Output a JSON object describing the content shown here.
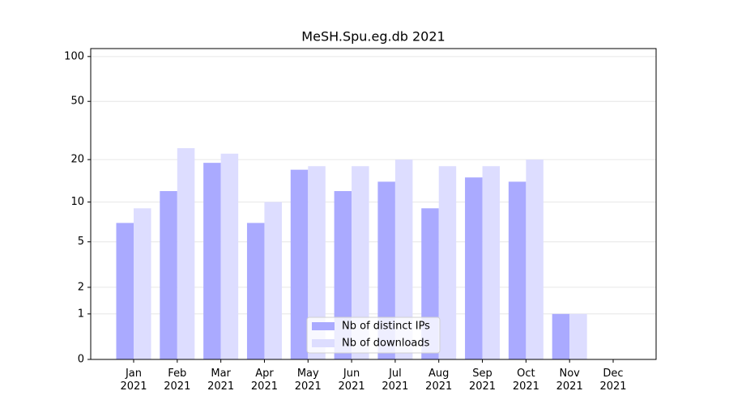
{
  "chart_data": {
    "type": "bar",
    "title": "MeSH.Spu.eg.db 2021",
    "categories": [
      "Jan 2021",
      "Feb 2021",
      "Mar 2021",
      "Apr 2021",
      "May 2021",
      "Jun 2021",
      "Jul 2021",
      "Aug 2021",
      "Sep 2021",
      "Oct 2021",
      "Nov 2021",
      "Dec 2021"
    ],
    "series": [
      {
        "name": "Nb of distinct IPs",
        "color": "#aaaaff",
        "values": [
          7,
          12,
          19,
          7,
          17,
          12,
          14,
          9,
          15,
          14,
          1,
          0
        ]
      },
      {
        "name": "Nb of downloads",
        "color": "#ddddff",
        "values": [
          9,
          24,
          22,
          10,
          18,
          18,
          20,
          18,
          18,
          20,
          1,
          0
        ]
      }
    ],
    "yscale": "symlog",
    "ylim": [
      0,
      113
    ],
    "yticks": [
      0,
      1,
      2,
      5,
      10,
      20,
      50,
      100
    ],
    "grid": true,
    "legend": "lower center"
  }
}
